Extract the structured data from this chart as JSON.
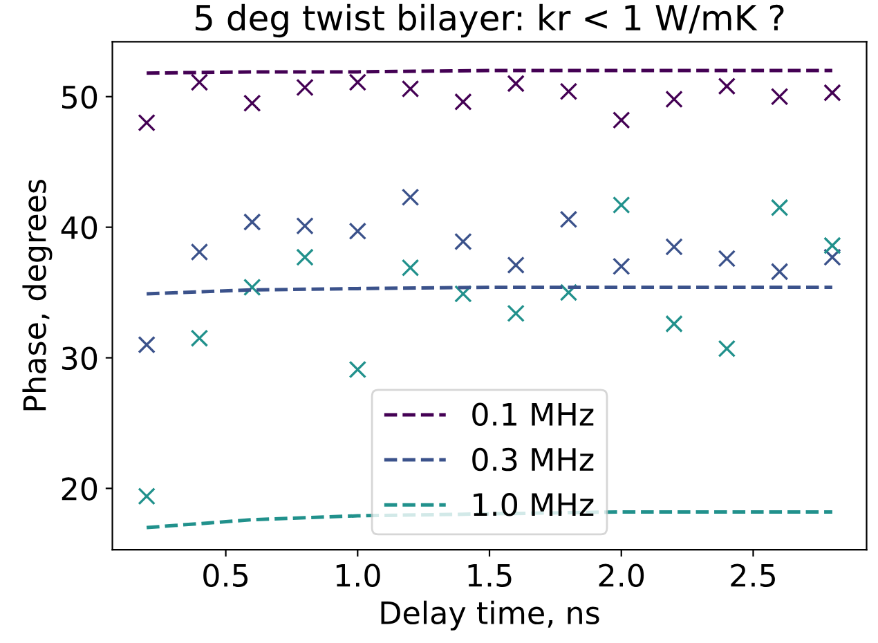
{
  "chart_data": {
    "type": "scatter",
    "title": "5 deg twist bilayer: kr < 1 W/mK ?",
    "xlabel": "Delay time, ns",
    "ylabel": "Phase, degrees",
    "x": [
      0.2,
      0.4,
      0.6,
      0.8,
      1.0,
      1.2,
      1.4,
      1.6,
      1.8,
      2.0,
      2.2,
      2.4,
      2.6,
      2.8
    ],
    "series": [
      {
        "marker": "cross",
        "color": "#440154",
        "values": [
          48.0,
          51.1,
          49.5,
          50.7,
          51.1,
          50.6,
          49.6,
          51.0,
          50.4,
          48.2,
          49.8,
          50.8,
          50.0,
          50.3
        ]
      },
      {
        "marker": "cross",
        "color": "#3b528b",
        "values": [
          31.0,
          38.1,
          40.4,
          40.1,
          39.7,
          42.3,
          38.9,
          37.1,
          40.6,
          37.0,
          38.5,
          37.6,
          36.6,
          37.7
        ]
      },
      {
        "marker": "cross",
        "color": "#21918c",
        "values": [
          19.4,
          31.5,
          35.4,
          37.7,
          29.1,
          36.9,
          34.9,
          33.4,
          35.0,
          41.7,
          32.6,
          30.7,
          41.5,
          38.6
        ]
      },
      {
        "type": "line",
        "name": "0.1 MHz",
        "line_style": "dashed",
        "color": "#440154",
        "x": [
          0.2,
          0.6,
          1.0,
          1.5,
          2.0,
          2.8
        ],
        "values": [
          51.8,
          51.9,
          51.9,
          52.0,
          52.0,
          52.0
        ]
      },
      {
        "type": "line",
        "name": "0.3 MHz",
        "line_style": "dashed",
        "color": "#3b528b",
        "x": [
          0.2,
          0.6,
          1.0,
          1.5,
          2.0,
          2.8
        ],
        "values": [
          34.9,
          35.2,
          35.3,
          35.4,
          35.4,
          35.4
        ]
      },
      {
        "type": "line",
        "name": "1.0 MHz",
        "line_style": "dashed",
        "color": "#21918c",
        "x": [
          0.2,
          0.6,
          1.0,
          2.0,
          2.8
        ],
        "values": [
          17.0,
          17.6,
          17.9,
          18.2,
          18.2
        ]
      }
    ],
    "xlim": [
      0.07,
      2.93
    ],
    "ylim": [
      15.3,
      54.2
    ],
    "xticks": [
      0.5,
      {
        "value": 1.0,
        "label": "1.0"
      },
      1.5,
      {
        "value": 2.0,
        "label": "2.0"
      },
      2.5
    ],
    "yticks": [
      20,
      30,
      40,
      50
    ],
    "legend": "bottom",
    "grid": false
  }
}
